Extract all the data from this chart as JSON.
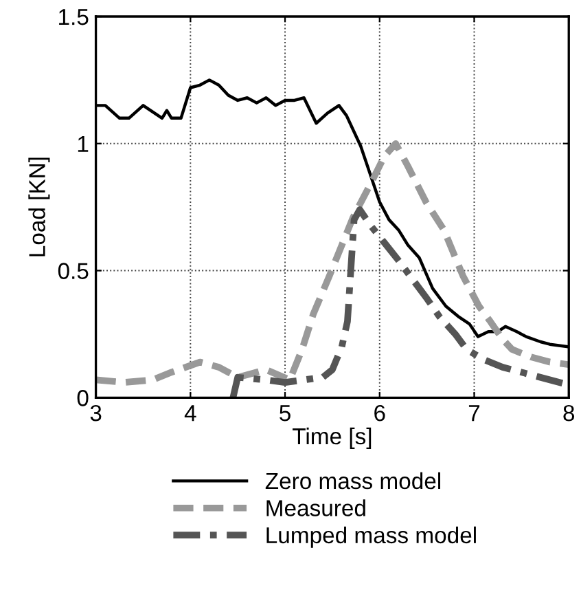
{
  "chart_data": {
    "type": "line",
    "xlabel": "Time [s]",
    "ylabel": "Load [KN]",
    "xlim": [
      3,
      8
    ],
    "xticks": [
      3,
      4,
      5,
      6,
      7,
      8
    ],
    "ylim": [
      0,
      1.5
    ],
    "yticks": [
      0,
      0.5,
      1,
      1.5
    ],
    "grid": true,
    "legend": "bottom",
    "marker": "none",
    "series": [
      {
        "name": "Zero mass model",
        "color": "#000000",
        "line_style": "solid",
        "x": [
          3,
          3.1,
          3.25,
          3.35,
          3.5,
          3.7,
          3.75,
          3.8,
          3.9,
          4,
          4.1,
          4.2,
          4.3,
          4.4,
          4.5,
          4.6,
          4.7,
          4.8,
          4.9,
          5,
          5.1,
          5.2,
          5.33,
          5.45,
          5.57,
          5.65,
          5.8,
          5.9,
          6,
          6.1,
          6.2,
          6.3,
          6.42,
          6.56,
          6.7,
          6.83,
          6.95,
          7.04,
          7.15,
          7.25,
          7.33,
          7.45,
          7.55,
          7.7,
          7.8,
          8
        ],
        "values": [
          1.15,
          1.15,
          1.1,
          1.1,
          1.15,
          1.1,
          1.13,
          1.1,
          1.1,
          1.22,
          1.23,
          1.25,
          1.23,
          1.19,
          1.17,
          1.18,
          1.16,
          1.18,
          1.15,
          1.17,
          1.17,
          1.18,
          1.08,
          1.12,
          1.15,
          1.11,
          0.99,
          0.88,
          0.77,
          0.7,
          0.66,
          0.6,
          0.55,
          0.43,
          0.36,
          0.32,
          0.29,
          0.24,
          0.26,
          0.26,
          0.28,
          0.26,
          0.24,
          0.22,
          0.21,
          0.2
        ]
      },
      {
        "name": "Measured",
        "color": "#999999",
        "line_style": "dashed",
        "x": [
          3,
          3.3,
          3.6,
          3.8,
          4.1,
          4.3,
          4.5,
          4.8,
          5.05,
          5.18,
          5.3,
          5.47,
          5.6,
          5.72,
          5.93,
          6.05,
          6.17,
          6.3,
          6.49,
          6.68,
          6.88,
          7.05,
          7.17,
          7.3,
          7.4,
          7.6,
          7.8,
          8
        ],
        "values": [
          0.07,
          0.06,
          0.07,
          0.1,
          0.14,
          0.12,
          0.08,
          0.11,
          0.07,
          0.19,
          0.33,
          0.48,
          0.6,
          0.71,
          0.86,
          0.95,
          1.0,
          0.91,
          0.77,
          0.66,
          0.48,
          0.36,
          0.3,
          0.23,
          0.19,
          0.16,
          0.14,
          0.13
        ]
      },
      {
        "name": "Lumped mass model",
        "color": "#555555",
        "line_style": "dashdot",
        "x": [
          4.45,
          4.5,
          4.8,
          5.0,
          5.2,
          5.4,
          5.5,
          5.6,
          5.66,
          5.73,
          5.79,
          5.9,
          6.05,
          6.2,
          6.34,
          6.5,
          6.63,
          6.8,
          6.92,
          7.1,
          7.3,
          7.5,
          7.7,
          8
        ],
        "values": [
          0,
          0.08,
          0.07,
          0.06,
          0.07,
          0.08,
          0.11,
          0.2,
          0.3,
          0.7,
          0.74,
          0.68,
          0.61,
          0.54,
          0.47,
          0.39,
          0.32,
          0.25,
          0.19,
          0.15,
          0.12,
          0.1,
          0.08,
          0.05
        ]
      }
    ]
  }
}
